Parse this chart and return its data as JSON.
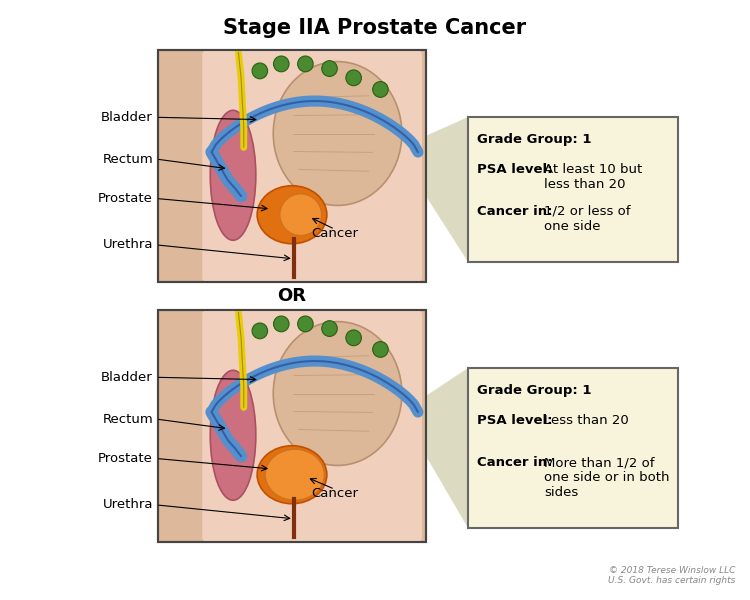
{
  "title": "Stage IIA Prostate Cancer",
  "title_fontsize": 15,
  "title_fontweight": "bold",
  "background_color": "#ffffff",
  "or_label": "OR",
  "copyright": "© 2018 Terese Winslow LLC\nU.S. Govt. has certain rights",
  "panel1": {
    "box_title": "Grade Group: 1",
    "box_psa_label": "PSA level:",
    "box_psa_value": "At least 10 but\nless than 20",
    "box_cancer_label": "Cancer in:",
    "box_cancer_value": "1/2 or less of\none side",
    "box_bg": "#f8f4dc",
    "box_border": "#666666"
  },
  "panel2": {
    "box_title": "Grade Group: 1",
    "box_psa_label": "PSA level:",
    "box_psa_value": "Less than 20",
    "box_cancer_label": "Cancer in:",
    "box_cancer_value": "More than 1/2 of\none side or in both\nsides",
    "box_bg": "#f8f4dc",
    "box_border": "#666666"
  },
  "colors": {
    "skin_bg": "#ddb89a",
    "skin_inner": "#e8c4aa",
    "body_light": "#f0d0bc",
    "bladder_fill": "#d4a888",
    "bladder_edge": "#b08868",
    "rectum_fill": "#cc7080",
    "rectum_edge": "#aa5060",
    "prostate_fill": "#e07010",
    "prostate_edge": "#c05000",
    "cancer_fill": "#f09030",
    "cancer_edge": "#d07020",
    "blue_tube": "#5590cc",
    "blue_dark": "#3060aa",
    "yellow_tube": "#e8cc10",
    "yellow_dark": "#a89000",
    "green_node": "#4a8a30",
    "green_dark": "#2a6010",
    "urethra_color": "#803010",
    "panel_border": "#444444",
    "trap_color": "#d8d4b8"
  }
}
